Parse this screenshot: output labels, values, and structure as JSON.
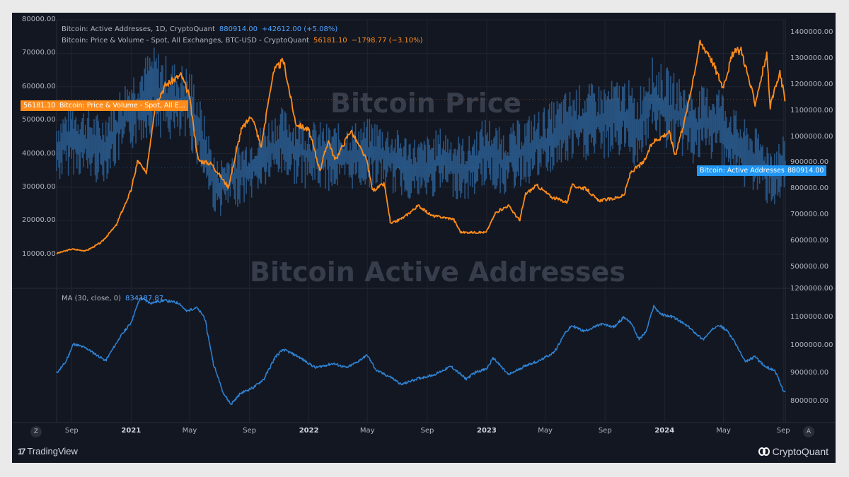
{
  "legend": {
    "address": {
      "label": "Bitcoin: Active Addresses, 1D, CryptoQuant",
      "value": "880914.00",
      "change": "+42612.00 (+5.08%)"
    },
    "price": {
      "label": "Bitcoin: Price & Volume - Spot, All Exchanges, BTC-USD - CryptoQuant",
      "value": "56181.10",
      "change": "−1798.77 (−3.10%)"
    },
    "ma": {
      "label": "MA (30, close, 0)",
      "value": "834187.87"
    }
  },
  "watermarks": {
    "top": "Bitcoin    Price",
    "bottom": "Bitcoin Active Addresses"
  },
  "tags": {
    "price_value": "56181.10",
    "price_name": "Bitcoin: Price & Volume - Spot, All E...",
    "address_name": "Bitcoin: Active Addresses",
    "address_value": "880914.00"
  },
  "nav": {
    "left": "Z",
    "right": "A"
  },
  "branding": {
    "left": "TradingView",
    "right": "CryptoQuant"
  },
  "colors": {
    "price": "#ff8c1a",
    "address": "#2a5a8c",
    "ma": "#2f84d6",
    "grid": "#1f2430",
    "text": "#b2b5be"
  },
  "chart_data": {
    "type": "line",
    "x_range": [
      "2020-08-01",
      "2024-09-05"
    ],
    "x_ticks": [
      {
        "label": "Sep",
        "date": "2020-09-01",
        "year": false
      },
      {
        "label": "2021",
        "date": "2021-01-01",
        "year": true
      },
      {
        "label": "May",
        "date": "2021-05-01",
        "year": false
      },
      {
        "label": "Sep",
        "date": "2021-09-01",
        "year": false
      },
      {
        "label": "2022",
        "date": "2022-01-01",
        "year": true
      },
      {
        "label": "May",
        "date": "2022-05-01",
        "year": false
      },
      {
        "label": "Sep",
        "date": "2022-09-01",
        "year": false
      },
      {
        "label": "2023",
        "date": "2023-01-01",
        "year": true
      },
      {
        "label": "May",
        "date": "2023-05-01",
        "year": false
      },
      {
        "label": "Sep",
        "date": "2023-09-01",
        "year": false
      },
      {
        "label": "2024",
        "date": "2024-01-01",
        "year": true
      },
      {
        "label": "May",
        "date": "2024-05-01",
        "year": false
      },
      {
        "label": "Sep",
        "date": "2024-09-01",
        "year": false
      }
    ],
    "panes": [
      {
        "name": "price-pane",
        "left_axis": {
          "min": 0,
          "max": 80000,
          "ticks": [
            "10000.00",
            "20000.00",
            "30000.00",
            "40000.00",
            "50000.00",
            "60000.00",
            "70000.00",
            "80000.00"
          ]
        },
        "right_axis": {
          "min": 420000,
          "max": 1450000,
          "ticks": [
            "500000.00",
            "600000.00",
            "700000.00",
            "800000.00",
            "900000.00",
            "1000000.00",
            "1100000.00",
            "1200000.00",
            "1300000.00",
            "1400000.00"
          ]
        },
        "series": [
          {
            "name": "Bitcoin: Price & Volume - Spot, All Exchanges, BTC-USD",
            "axis": "left",
            "color": "#ff8c1a",
            "style": "line",
            "points": [
              [
                "2020-08-01",
                10200
              ],
              [
                "2020-09-01",
                11500
              ],
              [
                "2020-10-01",
                11000
              ],
              [
                "2020-11-01",
                13500
              ],
              [
                "2020-12-01",
                18500
              ],
              [
                "2021-01-01",
                29000
              ],
              [
                "2021-01-15",
                38000
              ],
              [
                "2021-02-01",
                34000
              ],
              [
                "2021-02-20",
                55000
              ],
              [
                "2021-03-13",
                60500
              ],
              [
                "2021-04-14",
                63500
              ],
              [
                "2021-05-01",
                57000
              ],
              [
                "2021-05-19",
                38000
              ],
              [
                "2021-06-15",
                37000
              ],
              [
                "2021-07-20",
                30000
              ],
              [
                "2021-08-15",
                47000
              ],
              [
                "2021-09-06",
                51500
              ],
              [
                "2021-09-25",
                42000
              ],
              [
                "2021-10-20",
                64500
              ],
              [
                "2021-11-10",
                67800
              ],
              [
                "2021-12-05",
                49000
              ],
              [
                "2022-01-01",
                47000
              ],
              [
                "2022-01-24",
                35000
              ],
              [
                "2022-02-10",
                44000
              ],
              [
                "2022-02-24",
                38000
              ],
              [
                "2022-03-28",
                47000
              ],
              [
                "2022-04-30",
                38000
              ],
              [
                "2022-05-12",
                29000
              ],
              [
                "2022-06-05",
                31000
              ],
              [
                "2022-06-18",
                19000
              ],
              [
                "2022-07-15",
                21000
              ],
              [
                "2022-08-14",
                24500
              ],
              [
                "2022-09-10",
                21500
              ],
              [
                "2022-10-25",
                20500
              ],
              [
                "2022-11-09",
                16500
              ],
              [
                "2022-12-31",
                16500
              ],
              [
                "2023-01-20",
                22500
              ],
              [
                "2023-02-15",
                24500
              ],
              [
                "2023-03-10",
                20000
              ],
              [
                "2023-03-22",
                28000
              ],
              [
                "2023-04-14",
                30500
              ],
              [
                "2023-05-15",
                27000
              ],
              [
                "2023-06-15",
                25500
              ],
              [
                "2023-06-25",
                30500
              ],
              [
                "2023-07-25",
                29500
              ],
              [
                "2023-08-17",
                26000
              ],
              [
                "2023-09-15",
                26500
              ],
              [
                "2023-10-10",
                27500
              ],
              [
                "2023-10-24",
                34500
              ],
              [
                "2023-11-20",
                37500
              ],
              [
                "2023-12-08",
                43500
              ],
              [
                "2024-01-11",
                46500
              ],
              [
                "2024-01-23",
                39500
              ],
              [
                "2024-02-15",
                52000
              ],
              [
                "2024-03-14",
                73000
              ],
              [
                "2024-04-01",
                70000
              ],
              [
                "2024-04-30",
                60000
              ],
              [
                "2024-05-21",
                70000
              ],
              [
                "2024-06-07",
                71000
              ],
              [
                "2024-07-05",
                55000
              ],
              [
                "2024-07-29",
                69500
              ],
              [
                "2024-08-05",
                54000
              ],
              [
                "2024-08-25",
                64000
              ],
              [
                "2024-09-05",
                56181.1
              ]
            ]
          },
          {
            "name": "Bitcoin: Active Addresses",
            "axis": "right",
            "color": "#2a5a8c",
            "style": "bars",
            "points": [
              [
                "2020-08-01",
                950000
              ],
              [
                "2020-09-01",
                1000000
              ],
              [
                "2020-11-01",
                950000
              ],
              [
                "2021-01-01",
                1100000
              ],
              [
                "2021-02-15",
                1180000
              ],
              [
                "2021-04-01",
                1130000
              ],
              [
                "2021-05-01",
                1120000
              ],
              [
                "2021-05-20",
                1020000
              ],
              [
                "2021-06-25",
                800000
              ],
              [
                "2021-07-20",
                830000
              ],
              [
                "2021-09-01",
                880000
              ],
              [
                "2021-11-01",
                980000
              ],
              [
                "2022-01-01",
                930000
              ],
              [
                "2022-03-01",
                920000
              ],
              [
                "2022-05-15",
                940000
              ],
              [
                "2022-07-01",
                900000
              ],
              [
                "2022-08-20",
                870000
              ],
              [
                "2022-10-01",
                910000
              ],
              [
                "2022-11-20",
                870000
              ],
              [
                "2023-01-01",
                950000
              ],
              [
                "2023-02-01",
                900000
              ],
              [
                "2023-03-15",
                940000
              ],
              [
                "2023-05-01",
                980000
              ],
              [
                "2023-07-01",
                1050000
              ],
              [
                "2023-09-01",
                1060000
              ],
              [
                "2023-10-15",
                1080000
              ],
              [
                "2023-11-05",
                1020000
              ],
              [
                "2023-12-01",
                1150000
              ],
              [
                "2024-01-15",
                1100000
              ],
              [
                "2024-03-01",
                1040000
              ],
              [
                "2024-04-20",
                1060000
              ],
              [
                "2024-06-01",
                950000
              ],
              [
                "2024-07-10",
                900000
              ],
              [
                "2024-08-10",
                850000
              ],
              [
                "2024-09-05",
                880914
              ]
            ]
          }
        ]
      },
      {
        "name": "ma-pane",
        "right_axis": {
          "min": 750000,
          "max": 1200000,
          "ticks": [
            "800000.00",
            "900000.00",
            "1000000.00",
            "1100000.00",
            "1200000.00"
          ]
        },
        "series": [
          {
            "name": "MA (30, close, 0)",
            "axis": "right",
            "color": "#2f84d6",
            "style": "line",
            "points": [
              [
                "2020-08-01",
                900000
              ],
              [
                "2020-08-20",
                940000
              ],
              [
                "2020-09-05",
                1005000
              ],
              [
                "2020-10-01",
                990000
              ],
              [
                "2020-11-10",
                945000
              ],
              [
                "2020-12-10",
                1030000
              ],
              [
                "2021-01-01",
                1080000
              ],
              [
                "2021-01-20",
                1170000
              ],
              [
                "2021-02-10",
                1150000
              ],
              [
                "2021-03-10",
                1160000
              ],
              [
                "2021-04-10",
                1150000
              ],
              [
                "2021-04-25",
                1120000
              ],
              [
                "2021-05-15",
                1135000
              ],
              [
                "2021-06-01",
                1100000
              ],
              [
                "2021-06-20",
                930000
              ],
              [
                "2021-07-10",
                830000
              ],
              [
                "2021-07-25",
                790000
              ],
              [
                "2021-08-15",
                830000
              ],
              [
                "2021-09-10",
                850000
              ],
              [
                "2021-10-01",
                880000
              ],
              [
                "2021-10-25",
                960000
              ],
              [
                "2021-11-10",
                985000
              ],
              [
                "2021-12-10",
                960000
              ],
              [
                "2022-01-15",
                920000
              ],
              [
                "2022-02-20",
                935000
              ],
              [
                "2022-03-20",
                920000
              ],
              [
                "2022-04-10",
                940000
              ],
              [
                "2022-05-01",
                965000
              ],
              [
                "2022-05-20",
                910000
              ],
              [
                "2022-06-20",
                885000
              ],
              [
                "2022-07-10",
                860000
              ],
              [
                "2022-08-10",
                880000
              ],
              [
                "2022-09-15",
                895000
              ],
              [
                "2022-10-20",
                925000
              ],
              [
                "2022-11-20",
                880000
              ],
              [
                "2022-12-10",
                905000
              ],
              [
                "2023-01-01",
                915000
              ],
              [
                "2023-01-15",
                955000
              ],
              [
                "2023-02-15",
                895000
              ],
              [
                "2023-03-25",
                930000
              ],
              [
                "2023-04-20",
                945000
              ],
              [
                "2023-05-20",
                975000
              ],
              [
                "2023-06-10",
                1040000
              ],
              [
                "2023-06-25",
                1070000
              ],
              [
                "2023-07-20",
                1050000
              ],
              [
                "2023-08-25",
                1075000
              ],
              [
                "2023-09-20",
                1065000
              ],
              [
                "2023-10-10",
                1100000
              ],
              [
                "2023-10-25",
                1080000
              ],
              [
                "2023-11-10",
                1020000
              ],
              [
                "2023-11-25",
                1050000
              ],
              [
                "2023-12-10",
                1140000
              ],
              [
                "2023-12-25",
                1110000
              ],
              [
                "2024-01-20",
                1100000
              ],
              [
                "2024-02-20",
                1065000
              ],
              [
                "2024-03-20",
                1020000
              ],
              [
                "2024-04-20",
                1075000
              ],
              [
                "2024-05-10",
                1050000
              ],
              [
                "2024-05-25",
                1010000
              ],
              [
                "2024-06-15",
                940000
              ],
              [
                "2024-07-05",
                960000
              ],
              [
                "2024-07-25",
                925000
              ],
              [
                "2024-08-15",
                910000
              ],
              [
                "2024-09-01",
                840000
              ],
              [
                "2024-09-05",
                834187.87
              ]
            ]
          }
        ]
      }
    ]
  }
}
